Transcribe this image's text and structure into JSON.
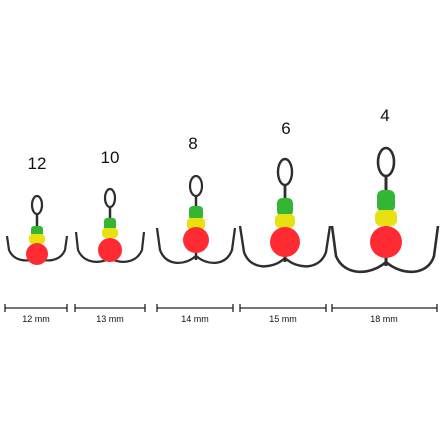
{
  "colors": {
    "hook_metal": "#2e2e2e",
    "bead_green": "#34b534",
    "bead_yellow": "#e8e010",
    "bead_red": "#ff2b33",
    "scale_line": "#222222"
  },
  "hooks": [
    {
      "size_label": "12",
      "length_label": "12 mm"
    },
    {
      "size_label": "10",
      "length_label": "13 mm"
    },
    {
      "size_label": "8",
      "length_label": "14 mm"
    },
    {
      "size_label": "6",
      "length_label": "15 mm"
    },
    {
      "size_label": "4",
      "length_label": "18 mm"
    }
  ]
}
